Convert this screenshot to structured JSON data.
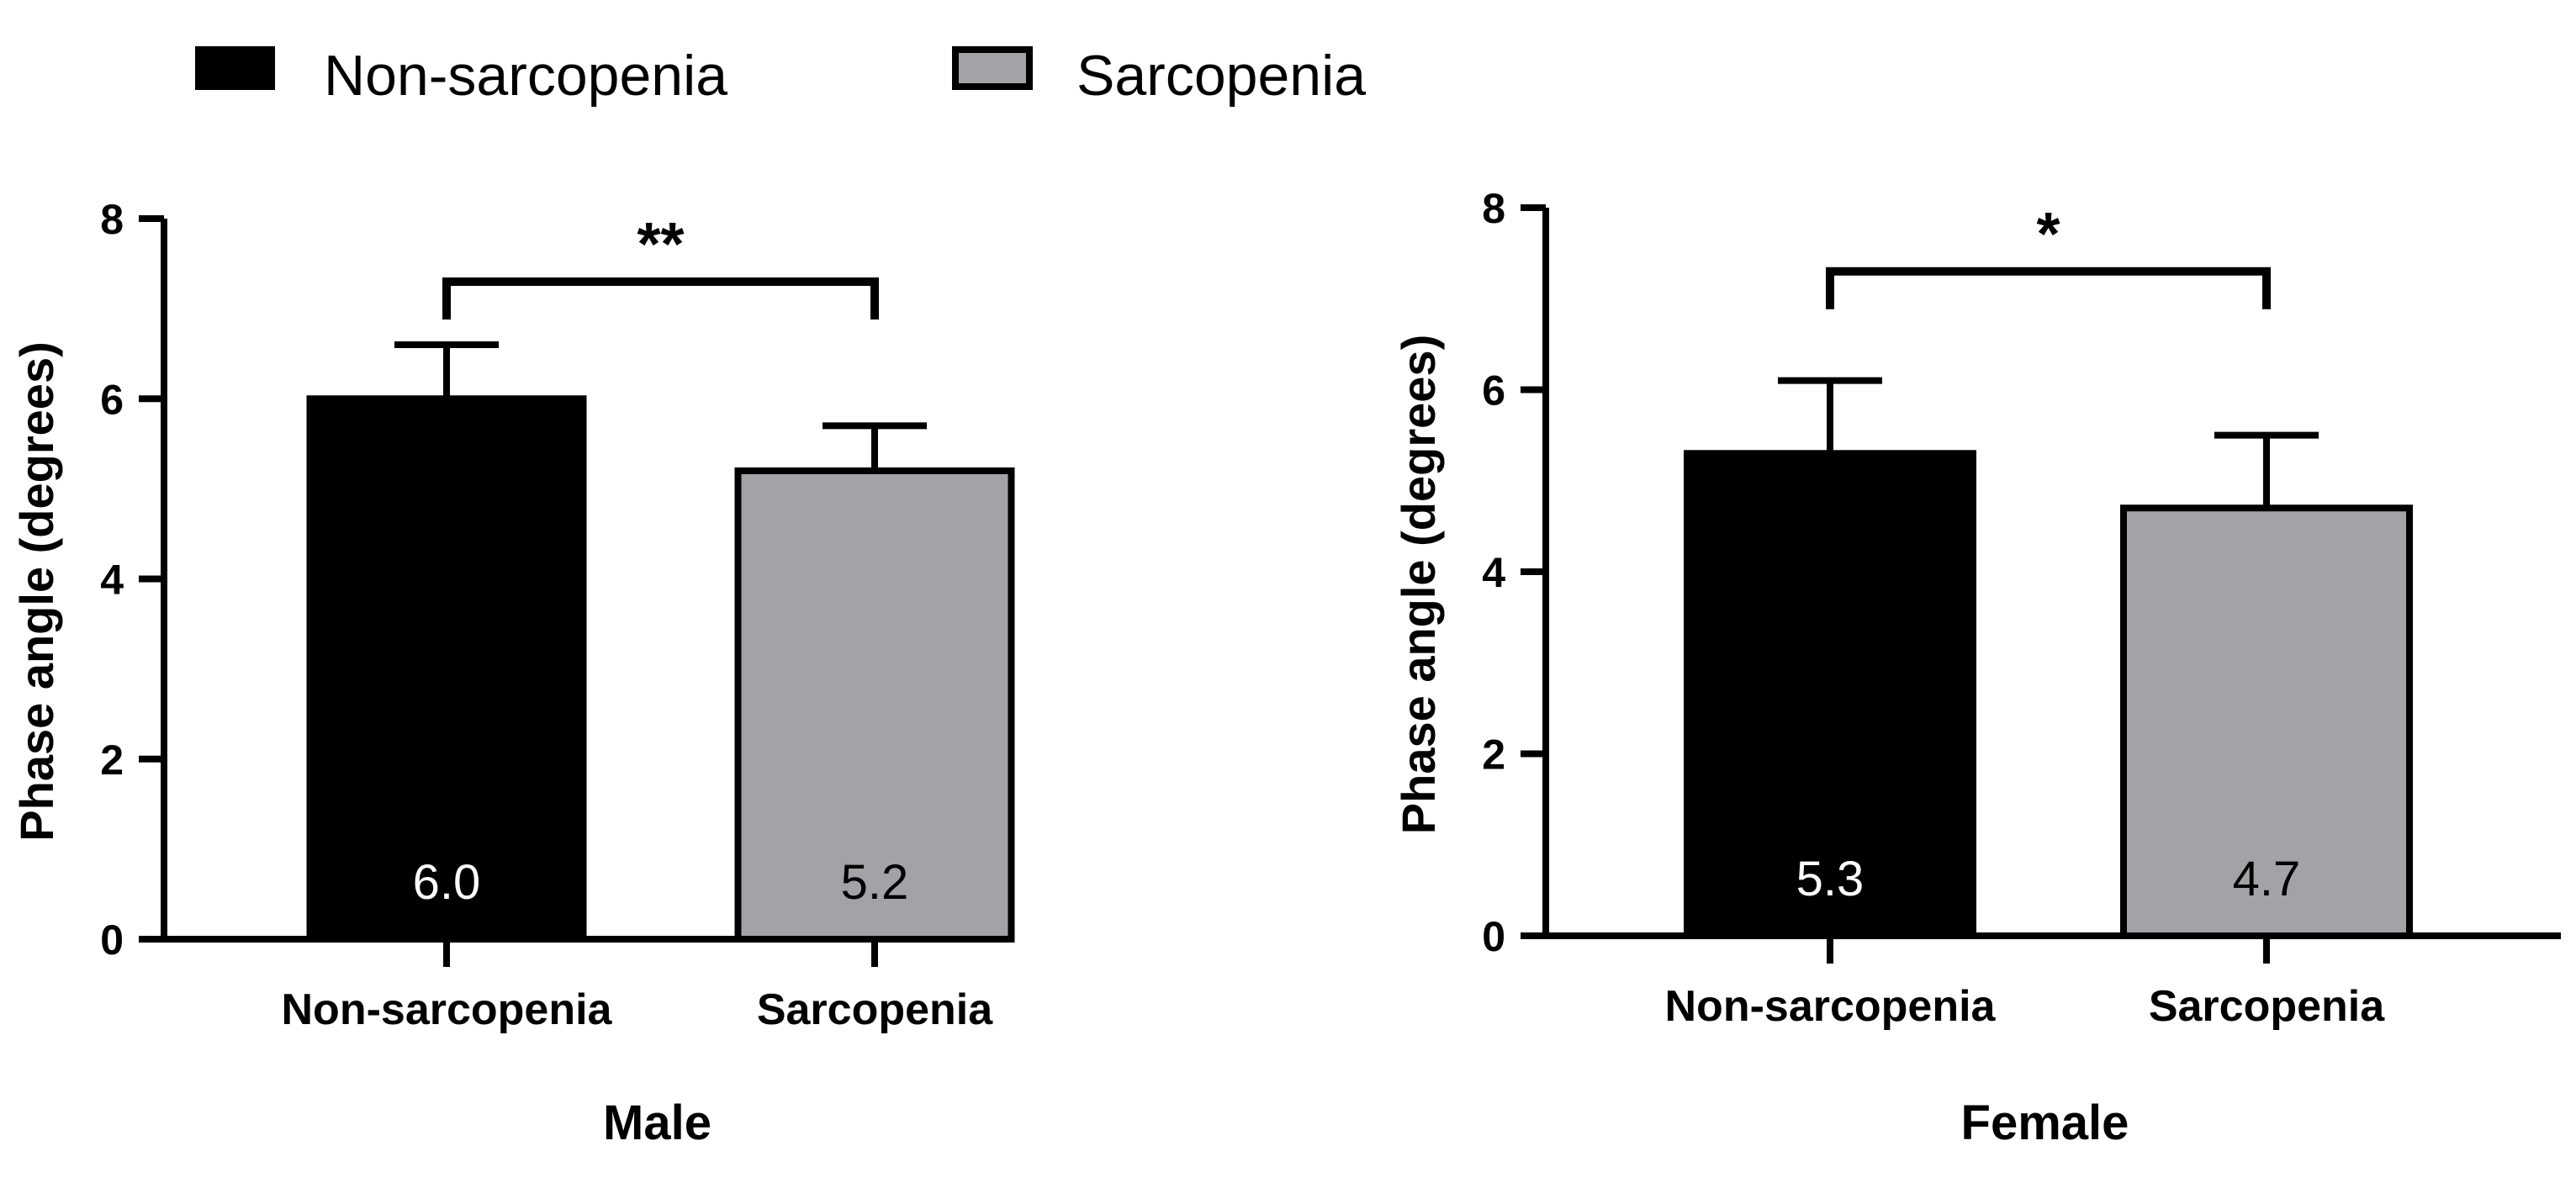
{
  "legend": [
    {
      "label": "Non-sarcopenia",
      "color": "#000000"
    },
    {
      "label": "Sarcopenia",
      "color": "#a3a2a6"
    }
  ],
  "chart_data": [
    {
      "type": "bar",
      "title": "Male",
      "xlabel": "Male",
      "ylabel": "Phase angle (degrees)",
      "categories": [
        "Non-sarcopenia",
        "Sarcopenia"
      ],
      "values": [
        6.0,
        5.2
      ],
      "value_labels": [
        "6.0",
        "5.2"
      ],
      "error_upper": [
        6.6,
        5.7
      ],
      "colors": [
        "#000000",
        "#a3a2a6"
      ],
      "label_colors": [
        "#ffffff",
        "#000000"
      ],
      "ylim": [
        0,
        8
      ],
      "yticks": [
        0,
        2,
        4,
        6,
        8
      ],
      "ytick_labels": [
        "0",
        "2",
        "4",
        "6",
        "8"
      ],
      "significance": "**",
      "grid": false
    },
    {
      "type": "bar",
      "title": "Female",
      "xlabel": "Female",
      "ylabel": "Phase angle (degrees)",
      "categories": [
        "Non-sarcopenia",
        "Sarcopenia"
      ],
      "values": [
        5.3,
        4.7
      ],
      "value_labels": [
        "5.3",
        "4.7"
      ],
      "error_upper": [
        6.1,
        5.5
      ],
      "colors": [
        "#000000",
        "#a3a2a6"
      ],
      "label_colors": [
        "#ffffff",
        "#000000"
      ],
      "ylim": [
        0,
        8
      ],
      "yticks": [
        0,
        2,
        4,
        6,
        8
      ],
      "ytick_labels": [
        "0",
        "2",
        "4",
        "6",
        "8"
      ],
      "significance": "*",
      "grid": false
    }
  ]
}
